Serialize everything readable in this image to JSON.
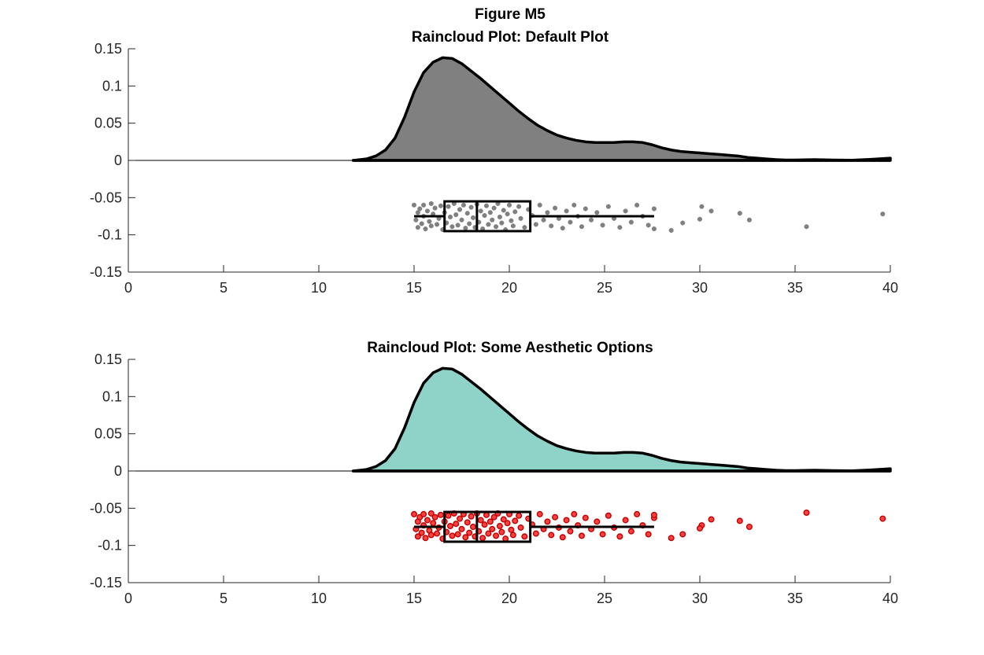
{
  "figure": {
    "title": "Figure M5"
  },
  "chart_data": [
    {
      "type": "raincloud",
      "title": "Raincloud Plot: Default Plot",
      "xlabel": "",
      "ylabel": "",
      "xlim": [
        0,
        40
      ],
      "ylim": [
        -0.15,
        0.15
      ],
      "xticks": [
        "0",
        "5",
        "10",
        "15",
        "20",
        "25",
        "30",
        "35",
        "40"
      ],
      "yticks": [
        "0.15",
        "0.1",
        "0.05",
        "0",
        "-0.05",
        "-0.1",
        "-0.15"
      ],
      "grid": false,
      "cloud_color": "#808080",
      "rain_color": "#808080",
      "rain_edge_color": "#808080",
      "density": {
        "x": [
          11.8,
          12.5,
          13.0,
          13.5,
          14.0,
          14.5,
          15.0,
          15.5,
          16.0,
          16.5,
          17.0,
          17.5,
          18.0,
          18.5,
          19.0,
          19.5,
          20.0,
          20.5,
          21.0,
          21.5,
          22.0,
          22.5,
          23.0,
          23.5,
          24.0,
          24.5,
          25.0,
          25.5,
          26.0,
          26.5,
          27.0,
          27.5,
          28.0,
          28.5,
          29.0,
          29.5,
          30.0,
          30.5,
          31.0,
          31.5,
          32.0,
          32.5,
          33.0,
          33.5,
          34.0,
          34.5,
          35.0,
          36.0,
          37.0,
          38.0,
          39.0,
          40.0
        ],
        "y": [
          0.0,
          0.002,
          0.006,
          0.014,
          0.03,
          0.058,
          0.092,
          0.118,
          0.132,
          0.138,
          0.137,
          0.13,
          0.12,
          0.11,
          0.099,
          0.088,
          0.077,
          0.066,
          0.056,
          0.047,
          0.04,
          0.034,
          0.03,
          0.027,
          0.025,
          0.024,
          0.024,
          0.024,
          0.025,
          0.025,
          0.024,
          0.021,
          0.017,
          0.014,
          0.012,
          0.011,
          0.01,
          0.009,
          0.008,
          0.007,
          0.006,
          0.004,
          0.003,
          0.002,
          0.001,
          0.0005,
          0.0005,
          0.001,
          0.0005,
          0.0002,
          0.0015,
          0.003
        ]
      },
      "box": {
        "q1": 16.6,
        "median": 18.3,
        "q3": 21.1,
        "whisker_low": 15.0,
        "whisker_high": 27.6,
        "y_center": -0.075,
        "height": 0.04
      },
      "points": [
        [
          15.0,
          -0.06
        ],
        [
          15.1,
          -0.08
        ],
        [
          15.2,
          -0.07
        ],
        [
          15.2,
          -0.09
        ],
        [
          15.3,
          -0.065
        ],
        [
          15.4,
          -0.085
        ],
        [
          15.5,
          -0.06
        ],
        [
          15.5,
          -0.075
        ],
        [
          15.6,
          -0.092
        ],
        [
          15.7,
          -0.068
        ],
        [
          15.8,
          -0.082
        ],
        [
          15.9,
          -0.058
        ],
        [
          15.9,
          -0.088
        ],
        [
          16.0,
          -0.072
        ],
        [
          16.1,
          -0.064
        ],
        [
          16.2,
          -0.086
        ],
        [
          16.3,
          -0.078
        ],
        [
          16.4,
          -0.061
        ],
        [
          16.5,
          -0.093
        ],
        [
          16.6,
          -0.07
        ],
        [
          16.7,
          -0.084
        ],
        [
          16.8,
          -0.062
        ],
        [
          16.9,
          -0.076
        ],
        [
          17.0,
          -0.089
        ],
        [
          17.1,
          -0.058
        ],
        [
          17.2,
          -0.073
        ],
        [
          17.3,
          -0.087
        ],
        [
          17.4,
          -0.066
        ],
        [
          17.5,
          -0.08
        ],
        [
          17.6,
          -0.06
        ],
        [
          17.7,
          -0.091
        ],
        [
          17.8,
          -0.071
        ],
        [
          17.9,
          -0.085
        ],
        [
          18.0,
          -0.063
        ],
        [
          18.1,
          -0.077
        ],
        [
          18.2,
          -0.09
        ],
        [
          18.3,
          -0.059
        ],
        [
          18.4,
          -0.083
        ],
        [
          18.5,
          -0.068
        ],
        [
          18.6,
          -0.092
        ],
        [
          18.7,
          -0.074
        ],
        [
          18.8,
          -0.061
        ],
        [
          18.9,
          -0.086
        ],
        [
          19.0,
          -0.07
        ],
        [
          19.1,
          -0.08
        ],
        [
          19.2,
          -0.064
        ],
        [
          19.3,
          -0.089
        ],
        [
          19.4,
          -0.058
        ],
        [
          19.5,
          -0.076
        ],
        [
          19.6,
          -0.084
        ],
        [
          19.7,
          -0.067
        ],
        [
          19.8,
          -0.093
        ],
        [
          19.9,
          -0.072
        ],
        [
          20.0,
          -0.06
        ],
        [
          20.1,
          -0.081
        ],
        [
          20.2,
          -0.088
        ],
        [
          20.3,
          -0.069
        ],
        [
          20.5,
          -0.062
        ],
        [
          20.6,
          -0.078
        ],
        [
          20.8,
          -0.09
        ],
        [
          21.0,
          -0.066
        ],
        [
          21.2,
          -0.074
        ],
        [
          21.4,
          -0.086
        ],
        [
          21.6,
          -0.06
        ],
        [
          21.8,
          -0.08
        ],
        [
          22.0,
          -0.07
        ],
        [
          22.2,
          -0.088
        ],
        [
          22.4,
          -0.064
        ],
        [
          22.6,
          -0.078
        ],
        [
          22.8,
          -0.091
        ],
        [
          23.0,
          -0.068
        ],
        [
          23.2,
          -0.083
        ],
        [
          23.4,
          -0.06
        ],
        [
          23.6,
          -0.075
        ],
        [
          23.8,
          -0.089
        ],
        [
          24.0,
          -0.065
        ],
        [
          24.3,
          -0.08
        ],
        [
          24.6,
          -0.07
        ],
        [
          24.9,
          -0.087
        ],
        [
          25.2,
          -0.062
        ],
        [
          25.5,
          -0.078
        ],
        [
          25.8,
          -0.09
        ],
        [
          26.1,
          -0.068
        ],
        [
          26.4,
          -0.083
        ],
        [
          26.7,
          -0.06
        ],
        [
          27.0,
          -0.075
        ],
        [
          27.3,
          -0.087
        ],
        [
          27.6,
          -0.065
        ],
        [
          27.6,
          -0.092
        ],
        [
          28.5,
          -0.094
        ],
        [
          29.1,
          -0.084
        ],
        [
          30.1,
          -0.062
        ],
        [
          30.6,
          -0.068
        ],
        [
          30.0,
          -0.079
        ],
        [
          32.1,
          -0.071
        ],
        [
          32.6,
          -0.08
        ],
        [
          35.6,
          -0.089
        ],
        [
          39.6,
          -0.072
        ]
      ]
    },
    {
      "type": "raincloud",
      "title": "Raincloud Plot: Some Aesthetic Options",
      "xlabel": "",
      "ylabel": "",
      "xlim": [
        0,
        40
      ],
      "ylim": [
        -0.15,
        0.15
      ],
      "xticks": [
        "0",
        "5",
        "10",
        "15",
        "20",
        "25",
        "30",
        "35",
        "40"
      ],
      "yticks": [
        "0.15",
        "0.1",
        "0.05",
        "0",
        "-0.05",
        "-0.1",
        "-0.15"
      ],
      "grid": false,
      "cloud_color": "#8fd3c8",
      "rain_color": "#ff4040",
      "rain_edge_color": "#c00000",
      "density": {
        "x": [
          11.8,
          12.5,
          13.0,
          13.5,
          14.0,
          14.5,
          15.0,
          15.5,
          16.0,
          16.5,
          17.0,
          17.5,
          18.0,
          18.5,
          19.0,
          19.5,
          20.0,
          20.5,
          21.0,
          21.5,
          22.0,
          22.5,
          23.0,
          23.5,
          24.0,
          24.5,
          25.0,
          25.5,
          26.0,
          26.5,
          27.0,
          27.5,
          28.0,
          28.5,
          29.0,
          29.5,
          30.0,
          30.5,
          31.0,
          31.5,
          32.0,
          32.5,
          33.0,
          33.5,
          34.0,
          34.5,
          35.0,
          36.0,
          37.0,
          38.0,
          39.0,
          40.0
        ],
        "y": [
          0.0,
          0.002,
          0.006,
          0.014,
          0.03,
          0.058,
          0.092,
          0.118,
          0.132,
          0.138,
          0.137,
          0.13,
          0.12,
          0.11,
          0.099,
          0.088,
          0.077,
          0.066,
          0.056,
          0.047,
          0.04,
          0.034,
          0.03,
          0.027,
          0.025,
          0.024,
          0.024,
          0.024,
          0.025,
          0.025,
          0.024,
          0.021,
          0.017,
          0.014,
          0.012,
          0.011,
          0.01,
          0.009,
          0.008,
          0.007,
          0.006,
          0.004,
          0.003,
          0.002,
          0.001,
          0.0005,
          0.0005,
          0.001,
          0.0005,
          0.0002,
          0.0015,
          0.003
        ]
      },
      "box": {
        "q1": 16.6,
        "median": 18.3,
        "q3": 21.1,
        "whisker_low": 15.0,
        "whisker_high": 27.6,
        "y_center": -0.075,
        "height": 0.04
      },
      "points": [
        [
          15.0,
          -0.058
        ],
        [
          15.1,
          -0.078
        ],
        [
          15.2,
          -0.068
        ],
        [
          15.2,
          -0.088
        ],
        [
          15.3,
          -0.062
        ],
        [
          15.4,
          -0.083
        ],
        [
          15.5,
          -0.058
        ],
        [
          15.5,
          -0.073
        ],
        [
          15.6,
          -0.09
        ],
        [
          15.7,
          -0.066
        ],
        [
          15.8,
          -0.08
        ],
        [
          15.9,
          -0.057
        ],
        [
          15.9,
          -0.086
        ],
        [
          16.0,
          -0.07
        ],
        [
          16.1,
          -0.062
        ],
        [
          16.2,
          -0.084
        ],
        [
          16.3,
          -0.076
        ],
        [
          16.4,
          -0.059
        ],
        [
          16.5,
          -0.091
        ],
        [
          16.6,
          -0.068
        ],
        [
          16.7,
          -0.082
        ],
        [
          16.8,
          -0.06
        ],
        [
          16.9,
          -0.074
        ],
        [
          17.0,
          -0.087
        ],
        [
          17.1,
          -0.057
        ],
        [
          17.2,
          -0.071
        ],
        [
          17.3,
          -0.085
        ],
        [
          17.4,
          -0.064
        ],
        [
          17.5,
          -0.078
        ],
        [
          17.6,
          -0.058
        ],
        [
          17.7,
          -0.089
        ],
        [
          17.8,
          -0.069
        ],
        [
          17.9,
          -0.083
        ],
        [
          18.0,
          -0.061
        ],
        [
          18.1,
          -0.075
        ],
        [
          18.2,
          -0.088
        ],
        [
          18.3,
          -0.057
        ],
        [
          18.4,
          -0.081
        ],
        [
          18.5,
          -0.066
        ],
        [
          18.6,
          -0.09
        ],
        [
          18.7,
          -0.072
        ],
        [
          18.8,
          -0.059
        ],
        [
          18.9,
          -0.084
        ],
        [
          19.0,
          -0.068
        ],
        [
          19.1,
          -0.078
        ],
        [
          19.2,
          -0.062
        ],
        [
          19.3,
          -0.087
        ],
        [
          19.4,
          -0.057
        ],
        [
          19.5,
          -0.074
        ],
        [
          19.6,
          -0.082
        ],
        [
          19.7,
          -0.065
        ],
        [
          19.8,
          -0.091
        ],
        [
          19.9,
          -0.07
        ],
        [
          20.0,
          -0.058
        ],
        [
          20.1,
          -0.079
        ],
        [
          20.2,
          -0.086
        ],
        [
          20.3,
          -0.067
        ],
        [
          20.5,
          -0.06
        ],
        [
          20.6,
          -0.076
        ],
        [
          20.8,
          -0.088
        ],
        [
          21.0,
          -0.064
        ],
        [
          21.2,
          -0.072
        ],
        [
          21.4,
          -0.084
        ],
        [
          21.6,
          -0.058
        ],
        [
          21.8,
          -0.078
        ],
        [
          22.0,
          -0.068
        ],
        [
          22.2,
          -0.086
        ],
        [
          22.4,
          -0.062
        ],
        [
          22.6,
          -0.076
        ],
        [
          22.8,
          -0.089
        ],
        [
          23.0,
          -0.066
        ],
        [
          23.2,
          -0.081
        ],
        [
          23.4,
          -0.058
        ],
        [
          23.6,
          -0.073
        ],
        [
          23.8,
          -0.087
        ],
        [
          24.0,
          -0.063
        ],
        [
          24.3,
          -0.078
        ],
        [
          24.6,
          -0.068
        ],
        [
          24.9,
          -0.085
        ],
        [
          25.2,
          -0.06
        ],
        [
          25.5,
          -0.076
        ],
        [
          25.8,
          -0.088
        ],
        [
          26.1,
          -0.066
        ],
        [
          26.4,
          -0.081
        ],
        [
          26.7,
          -0.058
        ],
        [
          27.0,
          -0.073
        ],
        [
          27.3,
          -0.085
        ],
        [
          27.6,
          -0.063
        ],
        [
          27.6,
          -0.059
        ],
        [
          28.5,
          -0.09
        ],
        [
          29.1,
          -0.085
        ],
        [
          30.1,
          -0.073
        ],
        [
          30.6,
          -0.065
        ],
        [
          30.0,
          -0.077
        ],
        [
          32.1,
          -0.067
        ],
        [
          32.6,
          -0.075
        ],
        [
          35.6,
          -0.056
        ],
        [
          39.6,
          -0.064
        ]
      ]
    }
  ]
}
